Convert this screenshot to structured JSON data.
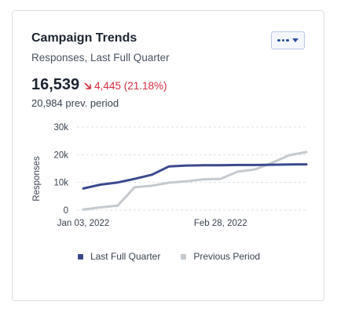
{
  "card": {
    "title": "Campaign Trends",
    "subtitle": "Responses, Last Full Quarter",
    "menu_icon": "more-dots-icon"
  },
  "metric": {
    "value": "16,539",
    "delta": "4,445 (21.18%)",
    "delta_direction": "down",
    "delta_color": "#d22b3f",
    "previous": "20,984 prev. period"
  },
  "chart_data": {
    "type": "line",
    "ylabel": "Responses",
    "xlabel": "",
    "ylim": [
      0,
      30000
    ],
    "yticks": [
      0,
      10000,
      20000,
      30000
    ],
    "ytick_labels": [
      "0",
      "10k",
      "20k",
      "30k"
    ],
    "x_tick_labels": [
      "Jan 03, 2022",
      "Feb 28, 2022"
    ],
    "x_tick_positions": [
      0,
      8
    ],
    "x_count": 14,
    "grid": true,
    "legend_position": "bottom",
    "series": [
      {
        "name": "Last Full Quarter",
        "color": "#3b4a8f",
        "values": [
          7800,
          9200,
          10000,
          11300,
          12800,
          15800,
          16100,
          16200,
          16200,
          16300,
          16300,
          16400,
          16500,
          16539
        ]
      },
      {
        "name": "Previous Period",
        "color": "#c5cacf",
        "values": [
          200,
          1000,
          1600,
          8300,
          8800,
          9900,
          10400,
          11100,
          11300,
          13900,
          14700,
          17100,
          19800,
          20984
        ]
      }
    ]
  }
}
